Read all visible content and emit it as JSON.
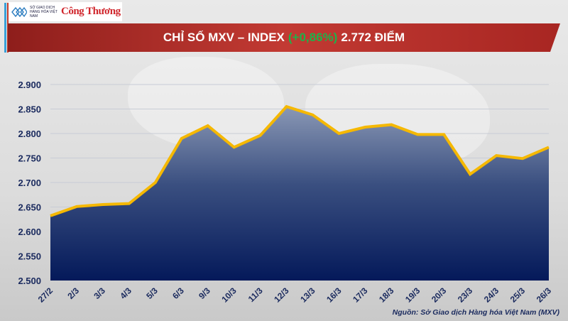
{
  "header": {
    "logo_text": "SỞ GIAO DỊCH HÀNG HÓA VIỆT NAM",
    "publisher_logo": "Công Thương",
    "title_prefix": "CHỈ SỐ MXV – INDEX",
    "title_change": "(+0,86%)",
    "title_suffix": "2.772 ĐIỂM"
  },
  "colors": {
    "banner": "#b52a26",
    "change_green": "#1fb24a",
    "line": "#f5b800",
    "area_top": "#8a98b5",
    "area_bottom": "#04195a",
    "text": "#1a2a5e"
  },
  "chart_data": {
    "type": "area",
    "title": "CHỈ SỐ MXV – INDEX (+0,86%) 2.772 ĐIỂM",
    "categories": [
      "27/2",
      "2/3",
      "3/3",
      "4/3",
      "5/3",
      "6/3",
      "9/3",
      "10/3",
      "11/3",
      "12/3",
      "13/3",
      "16/3",
      "17/3",
      "18/3",
      "19/3",
      "20/3",
      "23/3",
      "24/3",
      "25/3",
      "26/3"
    ],
    "values": [
      2632,
      2651,
      2655,
      2657,
      2700,
      2790,
      2816,
      2772,
      2796,
      2855,
      2838,
      2800,
      2813,
      2818,
      2798,
      2798,
      2717,
      2755,
      2749,
      2772
    ],
    "ylim": [
      2500,
      2900
    ],
    "yticks": [
      2500,
      2550,
      2600,
      2650,
      2700,
      2750,
      2800,
      2850,
      2900
    ],
    "ytick_labels": [
      "2.500",
      "2.550",
      "2.600",
      "2.650",
      "2.700",
      "2.750",
      "2.800",
      "2.850",
      "2.900"
    ],
    "grid": true,
    "legend": "none"
  },
  "footer": {
    "source": "Nguồn: Sở Giao dịch Hàng hóa Việt Nam (MXV)"
  }
}
